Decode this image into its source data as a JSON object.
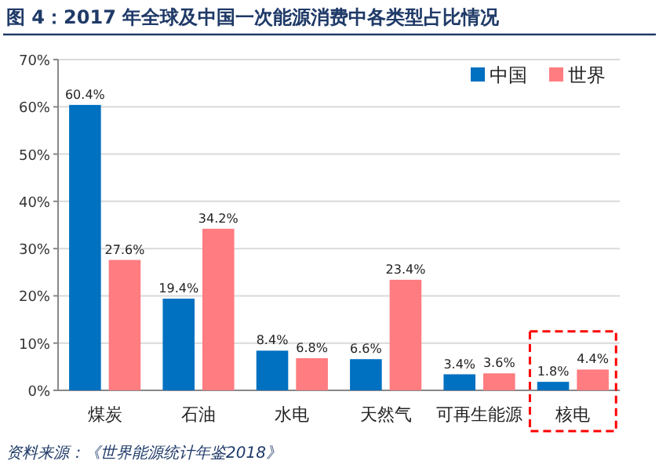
{
  "chart_data": {
    "type": "bar",
    "title": "图 4：2017 年全球及中国一次能源消费中各类型占比情况",
    "categories": [
      "煤炭",
      "石油",
      "水电",
      "天然气",
      "可再生能源",
      "核电"
    ],
    "series": [
      {
        "name": "中国",
        "color": "#0070c0",
        "values": [
          60.4,
          19.4,
          8.4,
          6.6,
          3.4,
          1.8
        ],
        "value_labels": [
          "60.4%",
          "19.4%",
          "8.4%",
          "6.6%",
          "3.4%",
          "1.8%"
        ]
      },
      {
        "name": "世界",
        "color": "#ff7c80",
        "values": [
          27.6,
          34.2,
          6.8,
          23.4,
          3.6,
          4.4
        ],
        "value_labels": [
          "27.6%",
          "34.2%",
          "6.8%",
          "23.4%",
          "3.6%",
          "4.4%"
        ]
      }
    ],
    "ylim": [
      0,
      70
    ],
    "yticks": [
      {
        "value": 0,
        "label": "0%"
      },
      {
        "value": 10,
        "label": "10%"
      },
      {
        "value": 20,
        "label": "20%"
      },
      {
        "value": 30,
        "label": "30%"
      },
      {
        "value": 40,
        "label": "40%"
      },
      {
        "value": 50,
        "label": "50%"
      },
      {
        "value": 60,
        "label": "60%"
      },
      {
        "value": 70,
        "label": "70%"
      }
    ],
    "grid": "y",
    "legend": "top right",
    "annotations": [
      "资料来源：《世界能源统计年鉴2018》"
    ]
  }
}
